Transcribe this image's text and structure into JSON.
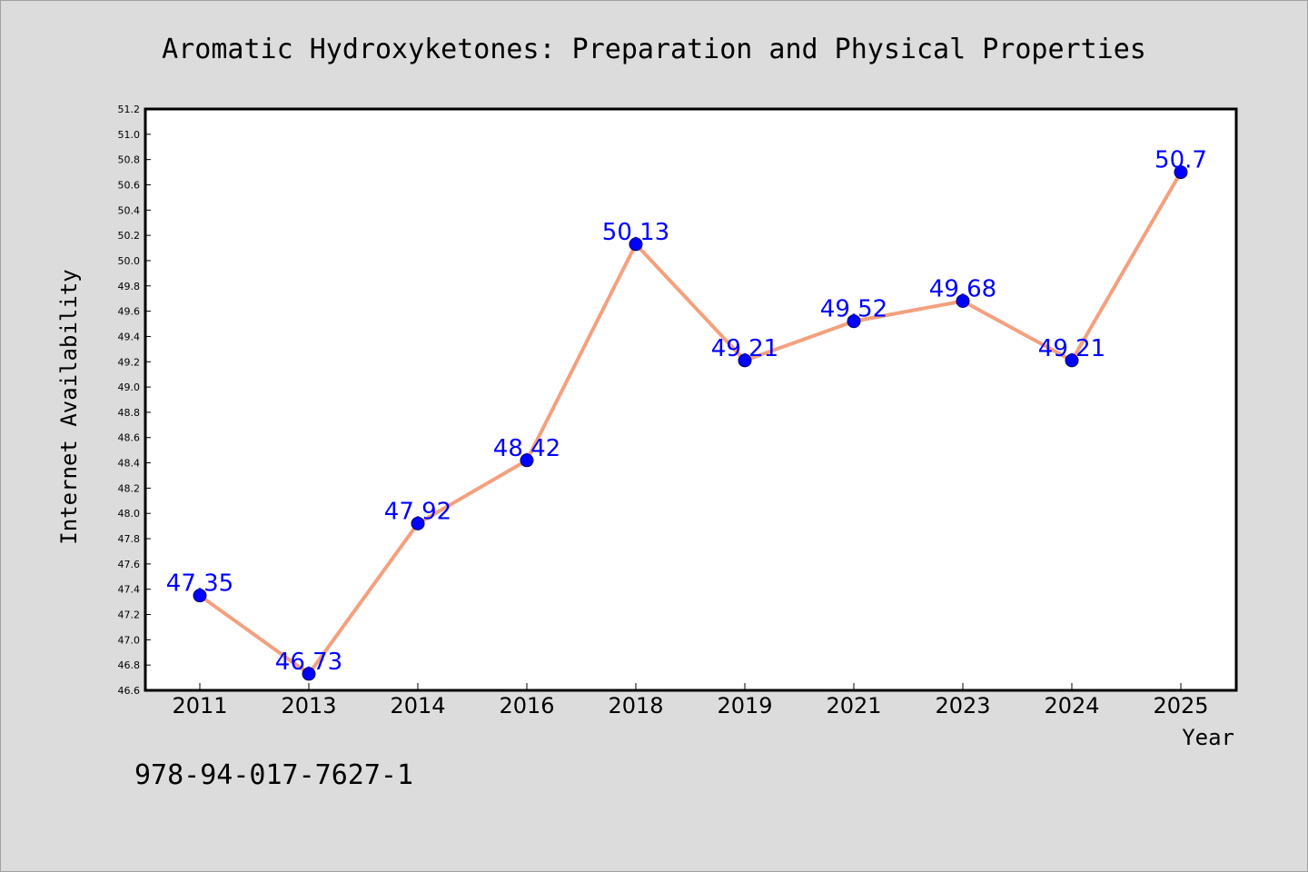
{
  "chart_data": {
    "type": "line",
    "title": "Aromatic Hydroxyketones: Preparation and Physical Properties",
    "xlabel": "Year",
    "ylabel": "Internet Availability",
    "categories": [
      "2011",
      "2013",
      "2014",
      "2016",
      "2018",
      "2019",
      "2021",
      "2023",
      "2024",
      "2025"
    ],
    "series": [
      {
        "values": [
          47.35,
          46.73,
          47.92,
          48.42,
          50.13,
          49.21,
          49.52,
          49.68,
          49.21,
          50.7
        ],
        "data_labels": [
          "47.35",
          "46.73",
          "47.92",
          "48.42",
          "50.13",
          "49.21",
          "49.52",
          "49.68",
          "49.21",
          "50.7"
        ]
      }
    ],
    "ylim": [
      46.6,
      51.2
    ],
    "yticks": [
      "46.6",
      "46.8",
      "47.0",
      "47.2",
      "47.4",
      "47.6",
      "47.8",
      "48.0",
      "48.2",
      "48.4",
      "48.6",
      "48.8",
      "49.0",
      "49.2",
      "49.4",
      "49.6",
      "49.8",
      "50.0",
      "50.2",
      "50.4",
      "50.6",
      "50.8",
      "51.0",
      "51.2"
    ],
    "grid": false,
    "legend": "none",
    "colors": {
      "line": "#f4a07e",
      "marker": "#0000ff",
      "data_label": "#0000ff",
      "background": "#dcdcdc",
      "plot_background": "#ffffff"
    }
  },
  "footer": {
    "isbn": "978-94-017-7627-1"
  }
}
